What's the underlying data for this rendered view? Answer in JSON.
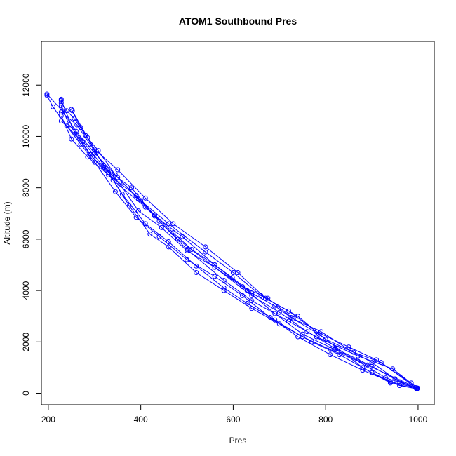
{
  "chart_data": {
    "type": "line",
    "title": "ATOM1 Southbound Pres",
    "xlabel": "Pres",
    "ylabel": "Altitude (m)",
    "xlim": [
      185,
      1035
    ],
    "ylim": [
      -450,
      13700
    ],
    "x_ticks": [
      200,
      400,
      600,
      800,
      1000
    ],
    "y_ticks": [
      0,
      2000,
      4000,
      6000,
      8000,
      10000,
      12000
    ],
    "grid": false,
    "legend": "none",
    "color": "#0000ff",
    "markers": "open-circle",
    "series": [
      {
        "x": [
          998,
          940,
          880,
          826,
          785,
          725,
          690,
          640,
          598,
          560,
          510,
          470,
          430,
          395,
          345,
          308,
          280,
          256,
          240,
          228,
          228
        ],
        "y": [
          170,
          400,
          1000,
          1750,
          2300,
          2950,
          3400,
          3900,
          4500,
          5000,
          5600,
          6250,
          6950,
          7550,
          8500,
          9450,
          10050,
          10700,
          11000,
          11300,
          11450
        ]
      },
      {
        "x": [
          228,
          258,
          290,
          340,
          410,
          480,
          560,
          640,
          700,
          760,
          820,
          900,
          960,
          998
        ],
        "y": [
          11400,
          10100,
          9300,
          8300,
          7250,
          6000,
          4900,
          3800,
          3150,
          2400,
          1750,
          1050,
          450,
          180
        ]
      },
      {
        "x": [
          995,
          930,
          870,
          810,
          750,
          690,
          630,
          580,
          520,
          460,
          410,
          360,
          325,
          290,
          262,
          228
        ],
        "y": [
          220,
          600,
          1250,
          1700,
          2200,
          2850,
          3500,
          4100,
          4950,
          5900,
          6600,
          7750,
          8750,
          9700,
          10450,
          10950
        ]
      },
      {
        "x": [
          228,
          250,
          285,
          330,
          390,
          440,
          500,
          580,
          640,
          720,
          780,
          870,
          945,
          999
        ],
        "y": [
          10800,
          9900,
          9200,
          8500,
          7700,
          6700,
          5600,
          4400,
          3600,
          2800,
          2200,
          1450,
          950,
          200
        ]
      },
      {
        "x": [
          996,
          950,
          900,
          850,
          790,
          730,
          675,
          620,
          560,
          500,
          445,
          395,
          355,
          320,
          285,
          252
        ],
        "y": [
          190,
          560,
          1200,
          1700,
          2400,
          2900,
          3700,
          4150,
          4900,
          5550,
          6450,
          7100,
          8150,
          8850,
          9950,
          11000
        ]
      },
      {
        "x": [
          250,
          270,
          300,
          350,
          410,
          470,
          540,
          610,
          670,
          740,
          800,
          860,
          920,
          998
        ],
        "y": [
          11050,
          10350,
          9500,
          8700,
          7600,
          6600,
          5700,
          4700,
          3700,
          3000,
          2100,
          1600,
          1200,
          180
        ]
      },
      {
        "x": [
          997,
          960,
          900,
          830,
          770,
          700,
          640,
          580,
          520,
          460,
          420,
          375,
          330,
          295,
          268,
          228
        ],
        "y": [
          170,
          300,
          800,
          1500,
          2000,
          2700,
          3300,
          4000,
          4700,
          5700,
          6200,
          7300,
          8600,
          9200,
          9900,
          10600
        ]
      },
      {
        "x": [
          228,
          245,
          275,
          320,
          380,
          430,
          490,
          560,
          630,
          690,
          750,
          820,
          890,
          999
        ],
        "y": [
          11200,
          10450,
          9800,
          8800,
          8000,
          6900,
          6100,
          5000,
          4000,
          3100,
          2300,
          1700,
          1100,
          200
        ]
      },
      {
        "x": [
          999,
          940,
          880,
          810,
          740,
          680,
          620,
          560,
          500,
          440,
          390,
          345,
          300,
          270,
          240,
          210,
          197
        ],
        "y": [
          200,
          450,
          900,
          1500,
          2200,
          2950,
          3800,
          4550,
          5200,
          6100,
          6850,
          7850,
          9000,
          9700,
          10400,
          11150,
          11600
        ]
      },
      {
        "x": [
          197,
          230,
          260,
          300,
          350,
          400,
          460,
          540,
          600,
          660,
          720,
          780,
          850,
          910,
          985
        ],
        "y": [
          11650,
          11000,
          10200,
          9350,
          8400,
          7500,
          6600,
          5500,
          4700,
          3800,
          3200,
          2400,
          1800,
          1300,
          400
        ]
      }
    ]
  }
}
